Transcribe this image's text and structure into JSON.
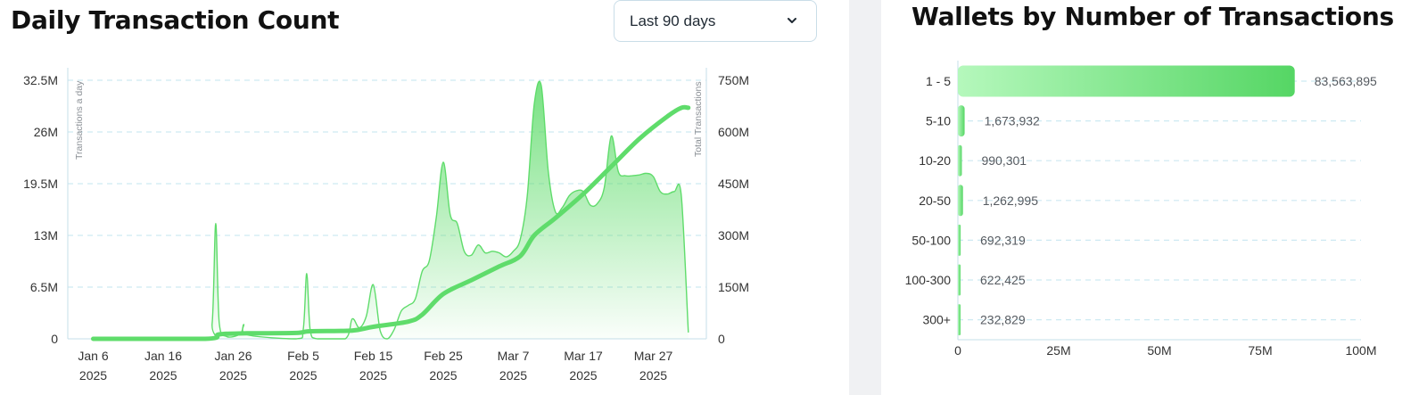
{
  "left_panel": {
    "title": "Daily Transaction Count",
    "range_select": {
      "value": "Last 90 days",
      "icon": "chevron-down-icon"
    }
  },
  "right_panel": {
    "title": "Wallets by Number of Transactions"
  },
  "colors": {
    "accent": "#5fdc6b",
    "grid": "#cde9f2",
    "axis": "#c6dfea",
    "tick": "#333333",
    "divider": "#f0f1f3"
  },
  "chart_data": [
    {
      "type": "area",
      "title": "Daily Transaction Count",
      "x_ticks": [
        {
          "date": "2025-01-06",
          "line1": "Jan 6",
          "line2": "2025"
        },
        {
          "date": "2025-01-16",
          "line1": "Jan 16",
          "line2": "2025"
        },
        {
          "date": "2025-01-26",
          "line1": "Jan 26",
          "line2": "2025"
        },
        {
          "date": "2025-02-05",
          "line1": "Feb 5",
          "line2": "2025"
        },
        {
          "date": "2025-02-15",
          "line1": "Feb 15",
          "line2": "2025"
        },
        {
          "date": "2025-02-25",
          "line1": "Feb 25",
          "line2": "2025"
        },
        {
          "date": "2025-03-07",
          "line1": "Mar 7",
          "line2": "2025"
        },
        {
          "date": "2025-03-17",
          "line1": "Mar 17",
          "line2": "2025"
        },
        {
          "date": "2025-03-27",
          "line1": "Mar 27",
          "line2": "2025"
        }
      ],
      "y_left": {
        "label": "Transactions a day",
        "ticks": [
          "0",
          "6.5M",
          "13M",
          "19.5M",
          "26M",
          "32.5M"
        ],
        "values": [
          0,
          6500000,
          13000000,
          19500000,
          26000000,
          32500000
        ],
        "lim": [
          0,
          32500000
        ]
      },
      "y_right": {
        "label": "Total Transactions",
        "ticks": [
          "0",
          "150M",
          "300M",
          "450M",
          "600M",
          "750M"
        ],
        "values": [
          0,
          150000000,
          300000000,
          450000000,
          600000000,
          750000000
        ],
        "lim": [
          0,
          750000000
        ]
      },
      "grid": true,
      "series": [
        {
          "name": "Transactions a day",
          "type": "area",
          "points": [
            [
              "2025-01-06",
              0
            ],
            [
              "2025-01-22",
              0
            ],
            [
              "2025-01-23",
              2000000
            ],
            [
              "2025-01-23T12:00",
              14500000
            ],
            [
              "2025-01-24",
              2000000
            ],
            [
              "2025-01-25",
              300000
            ],
            [
              "2025-01-27",
              600000
            ],
            [
              "2025-01-27T12:00",
              1800000
            ],
            [
              "2025-01-28",
              500000
            ],
            [
              "2025-02-04",
              0
            ],
            [
              "2025-02-05",
              1200000
            ],
            [
              "2025-02-05T12:00",
              8200000
            ],
            [
              "2025-02-06",
              1000000
            ],
            [
              "2025-02-07",
              0
            ],
            [
              "2025-02-11",
              0
            ],
            [
              "2025-02-12",
              2500000
            ],
            [
              "2025-02-13",
              1400000
            ],
            [
              "2025-02-14",
              2800000
            ],
            [
              "2025-02-15",
              6800000
            ],
            [
              "2025-02-16",
              1000000
            ],
            [
              "2025-02-17",
              0
            ],
            [
              "2025-02-18",
              1200000
            ],
            [
              "2025-02-19",
              3500000
            ],
            [
              "2025-02-20",
              4200000
            ],
            [
              "2025-02-21",
              5000000
            ],
            [
              "2025-02-22",
              8500000
            ],
            [
              "2025-02-23",
              9800000
            ],
            [
              "2025-02-24",
              15200000
            ],
            [
              "2025-02-25",
              22200000
            ],
            [
              "2025-02-26",
              15600000
            ],
            [
              "2025-02-27",
              14500000
            ],
            [
              "2025-02-28",
              11000000
            ],
            [
              "2025-03-01",
              10500000
            ],
            [
              "2025-03-02",
              11800000
            ],
            [
              "2025-03-03",
              10800000
            ],
            [
              "2025-03-04",
              11000000
            ],
            [
              "2025-03-05",
              10800000
            ],
            [
              "2025-03-06",
              10300000
            ],
            [
              "2025-03-07",
              11000000
            ],
            [
              "2025-03-08",
              12500000
            ],
            [
              "2025-03-09",
              18000000
            ],
            [
              "2025-03-10",
              29500000
            ],
            [
              "2025-03-11",
              31800000
            ],
            [
              "2025-03-12",
              21000000
            ],
            [
              "2025-03-13",
              16000000
            ],
            [
              "2025-03-14",
              16500000
            ],
            [
              "2025-03-15",
              18000000
            ],
            [
              "2025-03-16",
              18600000
            ],
            [
              "2025-03-17",
              18500000
            ],
            [
              "2025-03-18",
              16800000
            ],
            [
              "2025-03-19",
              17000000
            ],
            [
              "2025-03-20",
              19000000
            ],
            [
              "2025-03-21",
              25500000
            ],
            [
              "2025-03-22",
              21000000
            ],
            [
              "2025-03-23",
              20500000
            ],
            [
              "2025-03-24",
              20500000
            ],
            [
              "2025-03-25",
              20600000
            ],
            [
              "2025-03-26",
              20800000
            ],
            [
              "2025-03-27",
              20400000
            ],
            [
              "2025-03-28",
              18500000
            ],
            [
              "2025-03-29",
              18200000
            ],
            [
              "2025-03-30",
              18500000
            ],
            [
              "2025-03-31",
              18000000
            ],
            [
              "2025-04-01",
              800000
            ]
          ]
        },
        {
          "name": "Total Transactions",
          "type": "line",
          "axis": "right",
          "points": [
            [
              "2025-01-06",
              0
            ],
            [
              "2025-01-22",
              0
            ],
            [
              "2025-01-24",
              13000000
            ],
            [
              "2025-01-28",
              16000000
            ],
            [
              "2025-02-04",
              17000000
            ],
            [
              "2025-02-06",
              22000000
            ],
            [
              "2025-02-12",
              24000000
            ],
            [
              "2025-02-15",
              35000000
            ],
            [
              "2025-02-20",
              50000000
            ],
            [
              "2025-02-22",
              70000000
            ],
            [
              "2025-02-25",
              130000000
            ],
            [
              "2025-03-01",
              170000000
            ],
            [
              "2025-03-05",
              210000000
            ],
            [
              "2025-03-08",
              240000000
            ],
            [
              "2025-03-10",
              300000000
            ],
            [
              "2025-03-13",
              350000000
            ],
            [
              "2025-03-17",
              420000000
            ],
            [
              "2025-03-21",
              500000000
            ],
            [
              "2025-03-25",
              580000000
            ],
            [
              "2025-03-29",
              645000000
            ],
            [
              "2025-03-31",
              670000000
            ],
            [
              "2025-04-01",
              670000000
            ]
          ]
        }
      ]
    },
    {
      "type": "bar",
      "orientation": "horizontal",
      "title": "Wallets by Number of Transactions",
      "categories": [
        "1 - 5",
        "5-10",
        "10-20",
        "20-50",
        "50-100",
        "100-300",
        "300+"
      ],
      "values": [
        83563895,
        1673932,
        990301,
        1262995,
        692319,
        622425,
        232829
      ],
      "value_labels": [
        "83,563,895",
        "1,673,932",
        "990,301",
        "1,262,995",
        "692,319",
        "622,425",
        "232,829"
      ],
      "x_ticks": [
        "0",
        "25M",
        "50M",
        "75M",
        "100M"
      ],
      "x_tick_values": [
        0,
        25000000,
        50000000,
        75000000,
        100000000
      ],
      "xlim": [
        0,
        100000000
      ],
      "grid": true
    }
  ]
}
